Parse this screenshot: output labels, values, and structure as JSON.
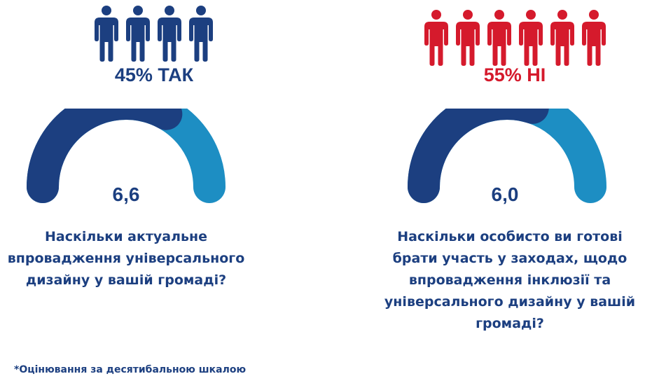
{
  "colors": {
    "navy": "#1c3f80",
    "light_blue": "#1d8ec3",
    "red": "#d51a2c",
    "text": "#1c3f80"
  },
  "icons": {
    "person": "person-icon"
  },
  "yes_no": {
    "yes_label": "45% ТАК",
    "no_label": "55% НІ",
    "yes_icon_count": 4,
    "no_icon_count": 6
  },
  "chart_data": [
    {
      "type": "gauge",
      "value": 6.6,
      "value_label": "6,6",
      "max": 10,
      "question_lines": [
        "Наскільки актуальне",
        "впровадження універсального",
        "дизайну у вашій громаді?"
      ]
    },
    {
      "type": "gauge",
      "value": 6.0,
      "value_label": "6,0",
      "max": 10,
      "question_lines": [
        "Наскільки особисто ви готові",
        "брати участь у заходах, щодо",
        "впровадження інклюзії та",
        "універсального дизайну у вашій",
        "громаді?"
      ]
    }
  ],
  "footnote": "*Оцінювання за десятибальною шкалою"
}
